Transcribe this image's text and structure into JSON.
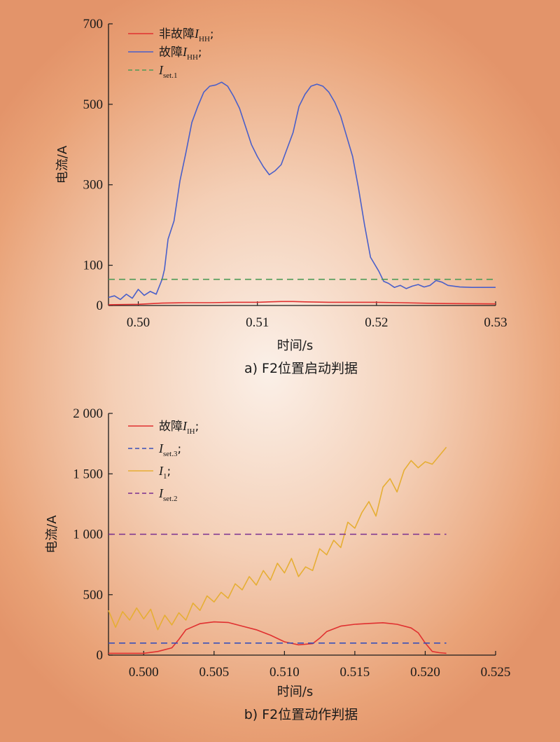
{
  "chart_data": [
    {
      "type": "line",
      "caption": "a) F2位置启动判据",
      "xlabel": "时间/s",
      "ylabel": "电流/A",
      "xlim": [
        0.4975,
        0.53
      ],
      "ylim": [
        0,
        700
      ],
      "xticks": [
        "0.50",
        "0.51",
        "0.52",
        "0.53"
      ],
      "yticks": [
        "0",
        "100",
        "300",
        "500",
        "700"
      ],
      "legend_position": "top-left",
      "series": [
        {
          "name": "非故障I_HH;",
          "legend": {
            "cn": "非故障",
            "sym": "I",
            "sub": "HH",
            "suffix": ";"
          },
          "color": "#e03030",
          "style": "solid",
          "x": [
            0.4975,
            0.5,
            0.502,
            0.504,
            0.506,
            0.508,
            0.51,
            0.511,
            0.512,
            0.513,
            0.514,
            0.516,
            0.518,
            0.52,
            0.522,
            0.525,
            0.53
          ],
          "y": [
            2,
            3,
            6,
            7,
            7,
            8,
            8,
            9,
            10,
            10,
            9,
            8,
            8,
            8,
            7,
            5,
            4
          ]
        },
        {
          "name": "故障I_HH;",
          "legend": {
            "cn": "故障",
            "sym": "I",
            "sub": "HH",
            "suffix": ";"
          },
          "color": "#4a5fc9",
          "style": "solid",
          "x": [
            0.4975,
            0.498,
            0.4985,
            0.499,
            0.4995,
            0.5,
            0.5005,
            0.501,
            0.5015,
            0.502,
            0.5022,
            0.5025,
            0.503,
            0.5035,
            0.504,
            0.5045,
            0.505,
            0.5055,
            0.506,
            0.5065,
            0.507,
            0.5075,
            0.508,
            0.5085,
            0.509,
            0.5095,
            0.51,
            0.5105,
            0.511,
            0.5115,
            0.512,
            0.5125,
            0.513,
            0.5135,
            0.514,
            0.5145,
            0.515,
            0.5155,
            0.516,
            0.5165,
            0.517,
            0.5175,
            0.518,
            0.5185,
            0.519,
            0.5195,
            0.5202,
            0.5206,
            0.521,
            0.5215,
            0.522,
            0.5225,
            0.523,
            0.5235,
            0.524,
            0.5245,
            0.525,
            0.5255,
            0.526,
            0.527,
            0.528,
            0.529,
            0.53
          ],
          "y": [
            20,
            24,
            15,
            28,
            18,
            40,
            25,
            35,
            28,
            65,
            90,
            165,
            210,
            310,
            380,
            455,
            495,
            530,
            545,
            548,
            555,
            545,
            520,
            490,
            445,
            400,
            370,
            345,
            325,
            335,
            350,
            390,
            430,
            495,
            525,
            545,
            550,
            545,
            530,
            505,
            470,
            420,
            370,
            290,
            200,
            120,
            85,
            60,
            55,
            45,
            50,
            42,
            48,
            52,
            46,
            50,
            62,
            58,
            50,
            46,
            45,
            45,
            45
          ]
        },
        {
          "name": "I_set.1",
          "legend": {
            "cn": "",
            "sym": "I",
            "sub": "set.1",
            "suffix": ""
          },
          "color": "#4e9a56",
          "style": "dashed",
          "x": [
            0.4975,
            0.53
          ],
          "y": [
            65,
            65
          ]
        }
      ]
    },
    {
      "type": "line",
      "caption": "b) F2位置动作判据",
      "xlabel": "时间/s",
      "ylabel": "电流/A",
      "xlim": [
        0.4975,
        0.525
      ],
      "ylim": [
        0,
        2000
      ],
      "xticks": [
        "0.500",
        "0.505",
        "0.510",
        "0.515",
        "0.520",
        "0.525"
      ],
      "yticks": [
        "0",
        "500",
        "1 000",
        "1 500",
        "2 000"
      ],
      "legend_position": "top-left",
      "series": [
        {
          "name": "故障I_IH;",
          "legend": {
            "cn": "故障",
            "sym": "I",
            "sub": "IH",
            "suffix": ";"
          },
          "color": "#e03030",
          "style": "solid",
          "x": [
            0.4975,
            0.5,
            0.501,
            0.502,
            0.5025,
            0.503,
            0.504,
            0.505,
            0.506,
            0.507,
            0.508,
            0.509,
            0.51,
            0.511,
            0.512,
            0.5125,
            0.513,
            0.514,
            0.515,
            0.516,
            0.517,
            0.518,
            0.519,
            0.5195,
            0.52,
            0.5205,
            0.521,
            0.5215
          ],
          "y": [
            15,
            15,
            30,
            60,
            130,
            210,
            260,
            275,
            270,
            240,
            210,
            165,
            110,
            85,
            95,
            140,
            195,
            240,
            255,
            262,
            268,
            255,
            225,
            185,
            100,
            30,
            20,
            15
          ]
        },
        {
          "name": "I_set.3;",
          "legend": {
            "cn": "",
            "sym": "I",
            "sub": "set.3",
            "suffix": ";"
          },
          "color": "#3a50b8",
          "style": "dashed",
          "x": [
            0.4975,
            0.5215
          ],
          "y": [
            100,
            100
          ]
        },
        {
          "name": "I_1;",
          "legend": {
            "cn": "",
            "sym": "I",
            "sub": "1",
            "suffix": ";"
          },
          "color": "#e6ae34",
          "style": "solid",
          "x": [
            0.4975,
            0.498,
            0.4985,
            0.499,
            0.4995,
            0.5,
            0.5005,
            0.501,
            0.5015,
            0.502,
            0.5025,
            0.503,
            0.5035,
            0.504,
            0.5045,
            0.505,
            0.5055,
            0.506,
            0.5065,
            0.507,
            0.5075,
            0.508,
            0.5085,
            0.509,
            0.5095,
            0.51,
            0.5105,
            0.511,
            0.5115,
            0.512,
            0.5125,
            0.513,
            0.5135,
            0.514,
            0.5145,
            0.515,
            0.5155,
            0.516,
            0.5165,
            0.517,
            0.5175,
            0.518,
            0.5185,
            0.519,
            0.5195,
            0.52,
            0.5205,
            0.521,
            0.5215
          ],
          "y": [
            370,
            230,
            360,
            290,
            390,
            300,
            380,
            210,
            330,
            250,
            350,
            290,
            430,
            370,
            490,
            440,
            520,
            470,
            590,
            540,
            650,
            580,
            700,
            620,
            760,
            680,
            800,
            650,
            730,
            700,
            880,
            830,
            950,
            890,
            1100,
            1050,
            1180,
            1270,
            1150,
            1390,
            1460,
            1350,
            1530,
            1610,
            1550,
            1600,
            1580,
            1650,
            1720
          ]
        },
        {
          "name": "I_set.2",
          "legend": {
            "cn": "",
            "sym": "I",
            "sub": "set.2",
            "suffix": ""
          },
          "color": "#7a2f8f",
          "style": "dashed",
          "x": [
            0.4975,
            0.5215
          ],
          "y": [
            1000,
            1000
          ]
        }
      ]
    }
  ]
}
